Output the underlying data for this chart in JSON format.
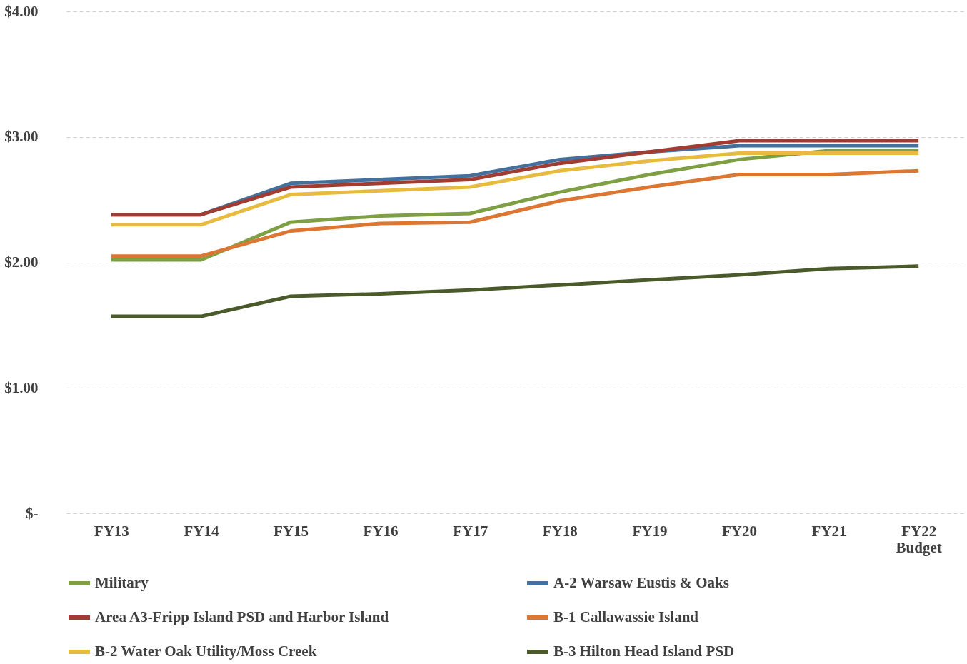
{
  "chart_data": {
    "type": "line",
    "categories": [
      "FY13",
      "FY14",
      "FY15",
      "FY16",
      "FY17",
      "FY18",
      "FY19",
      "FY20",
      "FY21",
      "FY22 Budget"
    ],
    "series": [
      {
        "name": "Military",
        "color": "#7f9f45",
        "values": [
          2.02,
          2.02,
          2.32,
          2.37,
          2.39,
          2.56,
          2.7,
          2.82,
          2.89,
          2.89
        ]
      },
      {
        "name": "A-2 Warsaw Eustis & Oaks",
        "color": "#44709d",
        "values": [
          2.38,
          2.38,
          2.63,
          2.66,
          2.69,
          2.82,
          2.88,
          2.93,
          2.93,
          2.93
        ]
      },
      {
        "name": "Area A3-Fripp Island PSD and Harbor Island",
        "color": "#a13c33",
        "values": [
          2.38,
          2.38,
          2.6,
          2.63,
          2.66,
          2.79,
          2.88,
          2.97,
          2.97,
          2.97
        ]
      },
      {
        "name": "B-1 Callawassie Island",
        "color": "#dc7633",
        "values": [
          2.05,
          2.05,
          2.25,
          2.31,
          2.32,
          2.49,
          2.6,
          2.7,
          2.7,
          2.73
        ]
      },
      {
        "name": "B-2 Water Oak Utility/Moss Creek",
        "color": "#e6bb3f",
        "values": [
          2.3,
          2.3,
          2.54,
          2.57,
          2.6,
          2.73,
          2.81,
          2.87,
          2.87,
          2.87
        ]
      },
      {
        "name": "B-3 Hilton Head Island PSD",
        "color": "#4a5a2a",
        "values": [
          1.57,
          1.57,
          1.73,
          1.75,
          1.78,
          1.82,
          1.86,
          1.9,
          1.95,
          1.97
        ]
      }
    ],
    "ylim": [
      0,
      4
    ],
    "yticks": [
      {
        "value": 0,
        "label": "$-"
      },
      {
        "value": 1,
        "label": "$1.00"
      },
      {
        "value": 2,
        "label": "$2.00"
      },
      {
        "value": 3,
        "label": "$3.00"
      },
      {
        "value": 4,
        "label": "$4.00"
      }
    ],
    "grid": "y",
    "legend": "bottom",
    "marker": "none",
    "line_style": "solid"
  }
}
